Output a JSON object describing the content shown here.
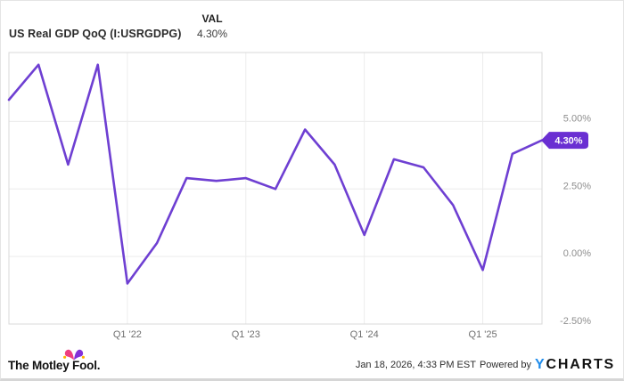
{
  "header": {
    "title": "US Real GDP QoQ (I:USRGDPG)",
    "val_label": "VAL",
    "val_value": "4.30%"
  },
  "chart_data": {
    "type": "line",
    "title": "US Real GDP QoQ (I:USRGDPG)",
    "series_name": "US Real GDP QoQ",
    "x": [
      "Q1 '21",
      "Q2 '21",
      "Q3 '21",
      "Q4 '21",
      "Q1 '22",
      "Q2 '22",
      "Q3 '22",
      "Q4 '22",
      "Q1 '23",
      "Q2 '23",
      "Q3 '23",
      "Q4 '23",
      "Q1 '24",
      "Q2 '24",
      "Q3 '24",
      "Q4 '24",
      "Q1 '25",
      "Q2 '25",
      "Q3 '25"
    ],
    "values": [
      5.8,
      7.1,
      3.4,
      7.1,
      -1.0,
      0.5,
      2.9,
      2.8,
      2.9,
      2.5,
      4.7,
      3.4,
      0.8,
      3.6,
      3.3,
      1.9,
      -0.5,
      3.8,
      4.3
    ],
    "unit": "%",
    "ylim": [
      -2.5,
      7.55
    ],
    "y_ticks": [
      {
        "value": 5,
        "label": "5.00%"
      },
      {
        "value": 2.5,
        "label": "2.50%"
      },
      {
        "value": 0,
        "label": "0.00%"
      },
      {
        "value": -2.5,
        "label": "-2.50%"
      }
    ],
    "x_ticks": [
      {
        "index": 4,
        "label": "Q1 '22"
      },
      {
        "index": 8,
        "label": "Q1 '23"
      },
      {
        "index": 12,
        "label": "Q1 '24"
      },
      {
        "index": 16,
        "label": "Q1 '25"
      }
    ],
    "last_point_label": "4.30%",
    "line_color": "#6e3fd2",
    "badge_color": "#6a2fd2",
    "grid_color": "#ececec",
    "border_color": "#d8d8d8",
    "grid": true,
    "legend_position": "none"
  },
  "footer": {
    "brand": "The Motley Fool.",
    "timestamp": "Jan 18, 2026, 4:33 PM EST",
    "powered_by": "Powered by",
    "ycharts_logo_y": "Y",
    "ycharts_logo_rest": "CHARTS"
  }
}
